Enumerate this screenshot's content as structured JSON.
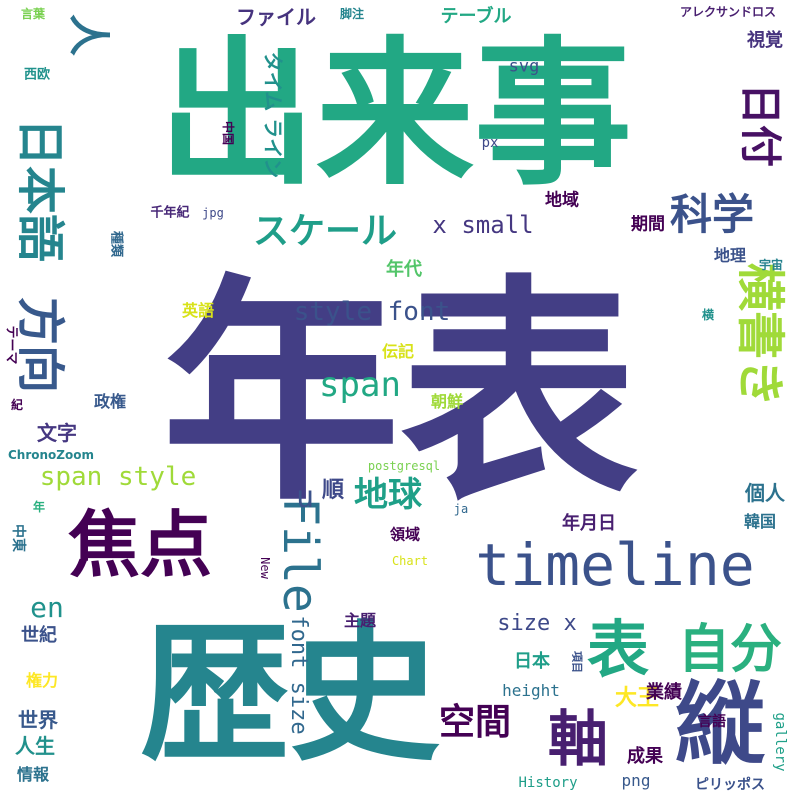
{
  "words": [
    {
      "text": "年表",
      "color": "#433e85"
    },
    {
      "text": "出来事",
      "color": "#22a884"
    },
    {
      "text": "歴史",
      "color": "#25858e"
    },
    {
      "text": "timeline",
      "color": "#3b528b"
    },
    {
      "text": "焦点",
      "color": "#440154"
    },
    {
      "text": "縦",
      "color": "#3e4989"
    },
    {
      "text": "File",
      "color": "#2c728e"
    },
    {
      "text": "表",
      "color": "#22a884"
    },
    {
      "text": "自分",
      "color": "#2ab07f"
    },
    {
      "text": "日本語",
      "color": "#25858e"
    },
    {
      "text": "日付",
      "color": "#471164"
    },
    {
      "text": "科学",
      "color": "#3b528b"
    },
    {
      "text": "方向",
      "color": "#38598c"
    },
    {
      "text": "横書き",
      "color": "#a0da39"
    },
    {
      "text": "スケール",
      "color": "#1f9e89"
    },
    {
      "text": "軸",
      "color": "#481f70"
    },
    {
      "text": "span",
      "color": "#22a884"
    },
    {
      "text": "地球",
      "color": "#1fa088"
    },
    {
      "text": "人",
      "color": "#2c728e"
    },
    {
      "text": "span style",
      "color": "#a0da39"
    },
    {
      "text": "style font",
      "color": "#3b528b"
    },
    {
      "text": "x small",
      "color": "#453781"
    },
    {
      "text": "u",
      "color": "#3b528b"
    },
    {
      "text": "順",
      "color": "#3e4989"
    },
    {
      "text": "空間",
      "color": "#440154"
    },
    {
      "text": "font size",
      "color": "#31688e"
    },
    {
      "text": "大王",
      "color": "#fde725"
    },
    {
      "text": "en",
      "color": "#20928c"
    },
    {
      "text": "size x",
      "color": "#3e4989"
    },
    {
      "text": "ファイル",
      "color": "#46337e"
    },
    {
      "text": "タイム ライン",
      "color": "#21918c"
    },
    {
      "text": "テーブル",
      "color": "#22a884"
    },
    {
      "text": "視覚",
      "color": "#46337e"
    },
    {
      "text": "svg",
      "color": "#3b528b"
    },
    {
      "text": "年代",
      "color": "#52c569"
    },
    {
      "text": "地域",
      "color": "#440154"
    },
    {
      "text": "期間",
      "color": "#440154"
    },
    {
      "text": "地理",
      "color": "#3b528b"
    },
    {
      "text": "文字",
      "color": "#453781"
    },
    {
      "text": "個人",
      "color": "#2c728e"
    },
    {
      "text": "業績",
      "color": "#440154"
    },
    {
      "text": "成果",
      "color": "#440154"
    },
    {
      "text": "世紀",
      "color": "#3b528b"
    },
    {
      "text": "世界",
      "color": "#38598c"
    },
    {
      "text": "人生",
      "color": "#21918c"
    },
    {
      "text": "情報",
      "color": "#2c728e"
    },
    {
      "text": "日本",
      "color": "#1f9e89"
    },
    {
      "text": "年月日",
      "color": "#481f70"
    },
    {
      "text": "韓国",
      "color": "#2c728e"
    },
    {
      "text": "英語",
      "color": "#d8e219"
    },
    {
      "text": "伝記",
      "color": "#d8e219"
    },
    {
      "text": "朝鮮",
      "color": "#a0da39"
    },
    {
      "text": "政権",
      "color": "#38598c"
    },
    {
      "text": "権力",
      "color": "#fde725"
    },
    {
      "text": "領域",
      "color": "#440154"
    },
    {
      "text": "主題",
      "color": "#481f70"
    },
    {
      "text": "height",
      "color": "#2c728e"
    },
    {
      "text": "gallery",
      "color": "#1fa088"
    },
    {
      "text": "png",
      "color": "#38598c"
    },
    {
      "text": "言語",
      "color": "#440154"
    },
    {
      "text": "History",
      "color": "#1f9e89"
    },
    {
      "text": "ピリッポス",
      "color": "#3b528b"
    },
    {
      "text": "アレクサンドロス",
      "color": "#481f70"
    },
    {
      "text": "脚注",
      "color": "#25858e"
    },
    {
      "text": "西欧",
      "color": "#20928c"
    },
    {
      "text": "言葉",
      "color": "#7ad151"
    },
    {
      "text": "中国",
      "color": "#440154"
    },
    {
      "text": "px",
      "color": "#3e4989"
    },
    {
      "text": "千年紀",
      "color": "#482878"
    },
    {
      "text": "jpg",
      "color": "#3e4989"
    },
    {
      "text": "種類",
      "color": "#31688e"
    },
    {
      "text": "宇宙",
      "color": "#26828e"
    },
    {
      "text": "横",
      "color": "#21918c"
    },
    {
      "text": "テーマ",
      "color": "#440154"
    },
    {
      "text": "紀",
      "color": "#440154"
    },
    {
      "text": "ChronoZoom",
      "color": "#25858e"
    },
    {
      "text": "postgresql",
      "color": "#7ad151"
    },
    {
      "text": "ja",
      "color": "#31688e"
    },
    {
      "text": "中東",
      "color": "#2c728e"
    },
    {
      "text": "年",
      "color": "#2ab07f"
    },
    {
      "text": "New",
      "color": "#440154"
    },
    {
      "text": "Chart",
      "color": "#d8e219"
    },
    {
      "text": "項目",
      "color": "#3b528b"
    }
  ]
}
